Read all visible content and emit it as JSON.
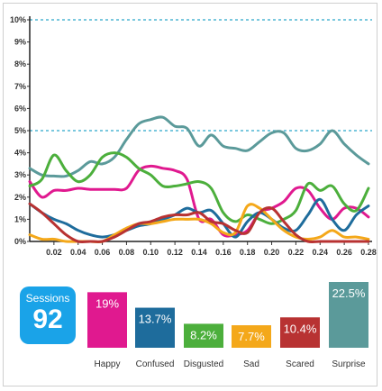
{
  "sessions": {
    "label": "Sessions",
    "value": "92"
  },
  "chart_data": [
    {
      "type": "line",
      "title": "",
      "xlabel": "",
      "ylabel": "",
      "x_ticks": [
        "0.02",
        "0.04",
        "0.06",
        "0.08",
        "0.10",
        "0.12",
        "0.14",
        "0.16",
        "0.18",
        "0.20",
        "0.22",
        "0.24",
        "0.26",
        "0.28"
      ],
      "y_ticks": [
        "0%",
        "1%",
        "2%",
        "3%",
        "4%",
        "5%",
        "6%",
        "7%",
        "8%",
        "9%",
        "10%"
      ],
      "xlim": [
        0.0,
        0.283
      ],
      "ylim": [
        0,
        10
      ],
      "reference_lines": [
        5,
        10
      ],
      "x": [
        0.0,
        0.01,
        0.02,
        0.03,
        0.04,
        0.05,
        0.06,
        0.07,
        0.08,
        0.09,
        0.1,
        0.11,
        0.12,
        0.13,
        0.14,
        0.15,
        0.16,
        0.17,
        0.18,
        0.19,
        0.2,
        0.21,
        0.22,
        0.23,
        0.24,
        0.25,
        0.26,
        0.27,
        0.28
      ],
      "series": [
        {
          "color": "#5b9a9a",
          "values": [
            3.3,
            3.0,
            2.95,
            2.95,
            3.2,
            3.6,
            3.5,
            3.8,
            4.6,
            5.3,
            5.5,
            5.6,
            5.2,
            5.1,
            4.3,
            4.8,
            4.3,
            4.2,
            4.1,
            4.5,
            4.9,
            4.9,
            4.2,
            4.1,
            4.4,
            5.0,
            4.4,
            3.9,
            3.5
          ]
        },
        {
          "color": "#e0198f",
          "values": [
            2.7,
            2.0,
            2.3,
            2.3,
            2.4,
            2.35,
            2.35,
            2.35,
            2.4,
            3.2,
            3.4,
            3.3,
            3.2,
            2.8,
            1.0,
            1.0,
            0.3,
            0.3,
            0.5,
            1.3,
            1.5,
            1.8,
            2.4,
            2.3,
            1.5,
            1.0,
            1.5,
            1.5,
            1.1
          ]
        },
        {
          "color": "#4caf3c",
          "values": [
            2.5,
            2.8,
            3.9,
            3.2,
            2.7,
            3.0,
            3.8,
            4.0,
            3.8,
            3.3,
            3.0,
            2.5,
            2.5,
            2.6,
            2.7,
            2.4,
            1.3,
            0.9,
            1.2,
            1.0,
            0.8,
            1.0,
            1.4,
            2.6,
            2.3,
            2.5,
            1.7,
            1.4,
            2.4
          ]
        },
        {
          "color": "#1e6c9c",
          "values": [
            1.7,
            1.3,
            1.0,
            0.8,
            0.5,
            0.3,
            0.2,
            0.3,
            0.5,
            0.7,
            0.8,
            1.0,
            1.2,
            1.5,
            1.3,
            1.4,
            0.8,
            0.2,
            0.9,
            1.3,
            1.0,
            0.6,
            0.5,
            1.2,
            1.9,
            1.0,
            0.5,
            1.2,
            1.6
          ]
        },
        {
          "color": "#f4a81a",
          "values": [
            0.3,
            0.1,
            0.1,
            0.0,
            0.0,
            0.0,
            0.0,
            0.3,
            0.6,
            0.8,
            0.8,
            0.9,
            1.0,
            1.0,
            1.0,
            0.8,
            0.4,
            0.4,
            1.6,
            1.5,
            1.0,
            0.5,
            0.2,
            0.1,
            0.2,
            0.5,
            0.2,
            0.2,
            0.1
          ]
        },
        {
          "color": "#b83232",
          "values": [
            1.7,
            1.3,
            0.8,
            0.3,
            0.0,
            0.0,
            0.0,
            0.2,
            0.5,
            0.8,
            0.9,
            1.1,
            1.2,
            1.2,
            1.3,
            0.9,
            0.8,
            0.5,
            0.4,
            1.3,
            1.5,
            0.9,
            0.3,
            0.0,
            0.0,
            0.0,
            0.0,
            0.0,
            0.0
          ]
        }
      ]
    },
    {
      "type": "bar",
      "title": "",
      "categories": [
        "Happy",
        "Confused",
        "Disgusted",
        "Sad",
        "Scared",
        "Surprise"
      ],
      "values": [
        19,
        13.7,
        8.2,
        7.7,
        10.4,
        22.5
      ],
      "value_labels": [
        "19%",
        "13.7%",
        "8.2%",
        "7.7%",
        "10.4%",
        "22.5%"
      ],
      "colors": [
        "#e0198f",
        "#1e6c9c",
        "#4caf3c",
        "#f4a81a",
        "#b83232",
        "#5b9a9a"
      ],
      "ylim": [
        0,
        22.5
      ]
    }
  ]
}
